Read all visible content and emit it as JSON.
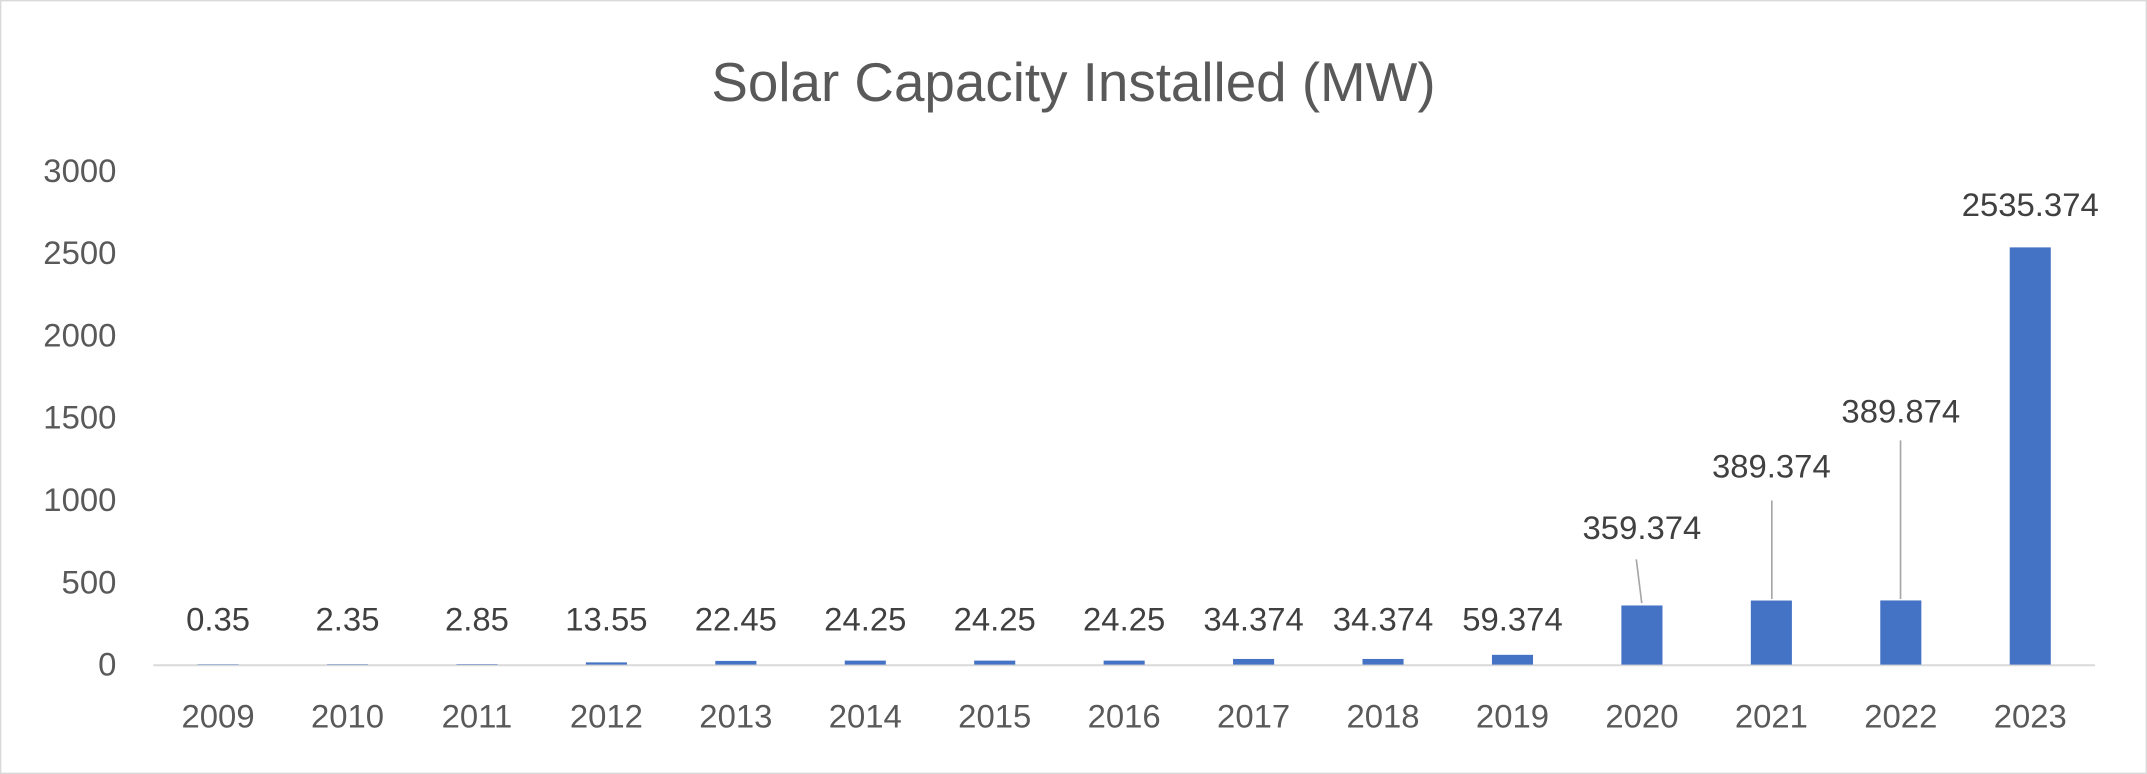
{
  "chart_data": {
    "type": "bar",
    "title": "Solar Capacity Installed (MW)",
    "xlabel": "",
    "ylabel": "",
    "ylim": [
      0,
      3000
    ],
    "yticks": [
      "0",
      "500",
      "1000",
      "1500",
      "2000",
      "2500",
      "3000"
    ],
    "grid": false,
    "legend": "none",
    "bar_color": "#4472C4",
    "categories": [
      "2009",
      "2010",
      "2011",
      "2012",
      "2013",
      "2014",
      "2015",
      "2016",
      "2017",
      "2018",
      "2019",
      "2020",
      "2021",
      "2022",
      "2023"
    ],
    "values": [
      0.35,
      2.35,
      2.85,
      13.55,
      22.45,
      24.25,
      24.25,
      24.25,
      34.374,
      34.374,
      59.374,
      359.374,
      389.374,
      389.874,
      2535.374
    ],
    "data_labels": [
      "0.35",
      "2.35",
      "2.85",
      "13.55",
      "22.45",
      "24.25",
      "24.25",
      "24.25",
      "34.374",
      "34.374",
      "59.374",
      "359.374",
      "389.374",
      "389.874",
      "2535.374"
    ]
  }
}
